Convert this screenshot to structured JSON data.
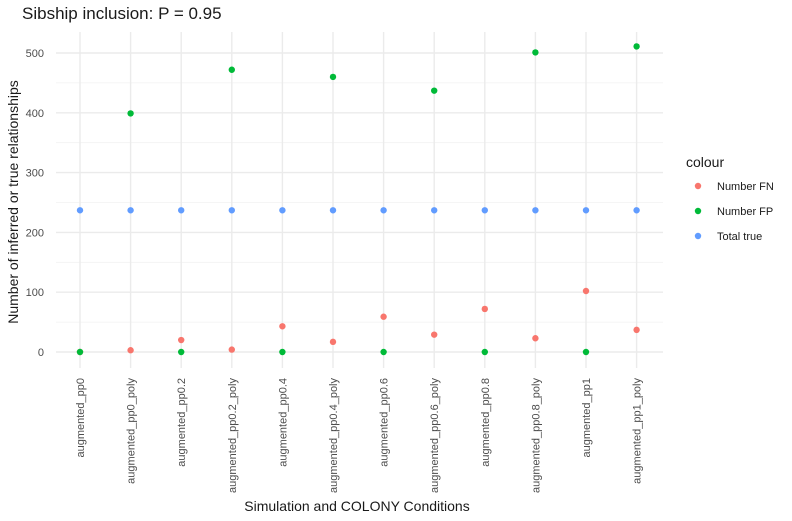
{
  "chart_data": {
    "type": "scatter",
    "title": "Sibship inclusion: P = 0.95",
    "xlabel": "Simulation and COLONY Conditions",
    "ylabel": "Number of inferred or true relationships",
    "categories": [
      "augmented_pp0",
      "augmented_pp0_poly",
      "augmented_pp0.2",
      "augmented_pp0.2_poly",
      "augmented_pp0.4",
      "augmented_pp0.4_poly",
      "augmented_pp0.6",
      "augmented_pp0.6_poly",
      "augmented_pp0.8",
      "augmented_pp0.8_poly",
      "augmented_pp1",
      "augmented_pp1_poly"
    ],
    "ylim": [
      -25,
      540
    ],
    "yticks": [
      0,
      100,
      200,
      300,
      400,
      500
    ],
    "grid": true,
    "legend": {
      "title": "colour",
      "position": "right"
    },
    "series": [
      {
        "name": "Number FN",
        "color": "#F8766D",
        "values": [
          0,
          3,
          20,
          4,
          43,
          17,
          59,
          29,
          72,
          23,
          102,
          37
        ]
      },
      {
        "name": "Number FP",
        "color": "#00BA38",
        "values": [
          0,
          399,
          0,
          472,
          0,
          460,
          0,
          437,
          0,
          501,
          0,
          511
        ]
      },
      {
        "name": "Total true",
        "color": "#619CFF",
        "values": [
          237,
          237,
          237,
          237,
          237,
          237,
          237,
          237,
          237,
          237,
          237,
          237
        ]
      }
    ]
  }
}
